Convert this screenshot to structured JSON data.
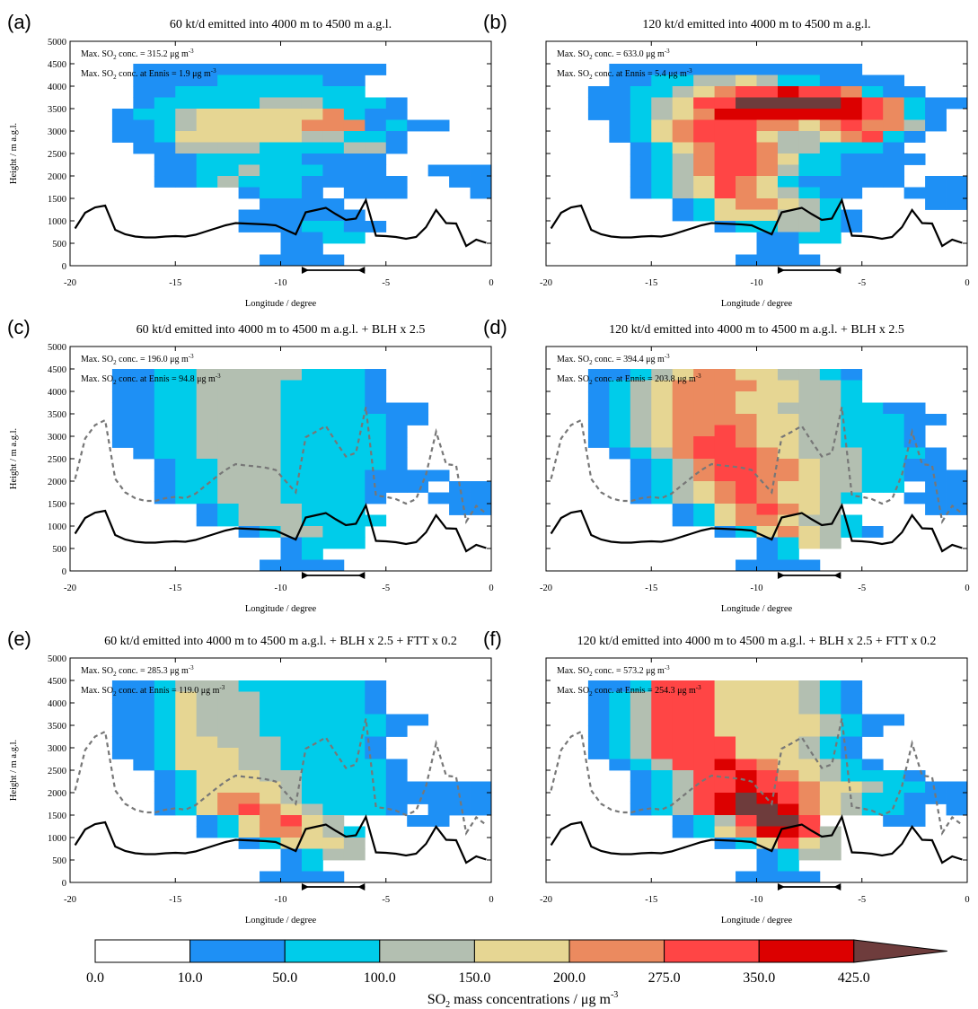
{
  "colorbar": {
    "labels": [
      "0.0",
      "10.0",
      "50.0",
      "100.0",
      "150.0",
      "200.0",
      "275.0",
      "350.0",
      "425.0"
    ],
    "colors": [
      "#ffffff",
      "#1e90f5",
      "#00ccea",
      "#b3bfb1",
      "#e6d693",
      "#eb8a5f",
      "#ff4545",
      "#dc0000",
      "#6e3c3c"
    ],
    "title_main": "SO",
    "title_sub": "2",
    "title_rest": " mass concentrations / μg m",
    "title_sup": "-3"
  },
  "axes": {
    "xlabel": "Longitude / degree",
    "ylabel": "Height / m a.g.l."
  },
  "chart_data": [
    {
      "type": "heatmap",
      "panel": "(a)",
      "title": "60 kt/d emitted into 4000 m to 4500 m a.g.l.",
      "ann": [
        {
          "pre": "Max. SO",
          "sub": "2",
          "post": " conc. = 315.2 μg m",
          "sup": "-3"
        },
        {
          "pre": "Max. SO",
          "sub": "2",
          "post": " conc. at Ennis = 1.9 μg m",
          "sup": "-3"
        }
      ],
      "xlim": [
        -20,
        0
      ],
      "ylim": [
        0,
        5000
      ],
      "x_ticks": [
        "-20",
        "-15",
        "-10",
        "-5",
        "0"
      ],
      "y_ticks": [
        "0",
        "500",
        "1000",
        "1500",
        "2000",
        "2500",
        "3000",
        "3500",
        "4000",
        "4500",
        "5000"
      ],
      "grid_x_edges": [
        -16.5,
        -15,
        -13.5,
        -12,
        -10.5,
        -9,
        -7.5,
        -6,
        -4.5,
        -3,
        -1.5
      ],
      "grid_y_step": 250,
      "cells": [
        "....................",
        "....................",
        "...111111111111.....",
        "...11112222211......",
        "...11222222222......",
        "...1222223332221....",
        "..12234444445211....",
        "..1123444445551211..",
        "..11244444433221....",
        "...1133332222331....",
        "....11222221111.....",
        "....11223222111..111",
        "....112322211111..11",
        "........1221.111...1",
        ".........1111.......",
        "........111111......",
        "........1112211.....",
        "..........1122......",
        "..........11.......",
        ".........1111......."
      ],
      "blh_solid": [
        830,
        1180,
        1300,
        1340,
        800,
        700,
        650,
        630,
        630,
        650,
        660,
        650,
        690,
        760,
        830,
        900,
        950,
        940,
        930,
        920,
        900,
        800,
        700,
        1190,
        1240,
        1290,
        1150,
        1020,
        1050,
        1460,
        670,
        660,
        640,
        600,
        640,
        860,
        1240,
        950,
        940,
        440,
        580,
        510
      ],
      "blh_dashed": [],
      "ennis_bar": [
        -9,
        -6
      ]
    },
    {
      "type": "heatmap",
      "panel": "(b)",
      "title": "120 kt/d emitted into 4000 m to 4500 m a.g.l.",
      "ann": [
        {
          "pre": "Max. SO",
          "sub": "2",
          "post": " conc. = 633.0 μg m",
          "sup": "-3"
        },
        {
          "pre": "Max. SO",
          "sub": "2",
          "post": " conc. at Ennis = 5.4 μg m",
          "sup": "-3"
        }
      ],
      "xlim": [
        -20,
        0
      ],
      "ylim": [
        0,
        5000
      ],
      "x_ticks": [
        "-20",
        "-15",
        "-10",
        "-5",
        "0"
      ],
      "y_ticks": [
        "0",
        "500",
        "1000",
        "1500",
        "2000",
        "2500",
        "3000",
        "3500",
        "4000",
        "4500",
        "5000"
      ],
      "cells": [
        "....................",
        "....................",
        "...111111111111.....",
        "...11223343221111...",
        "..1122345667665211..",
        "..112346688888765211",
        "..11234577777776521.",
        "...1245666554565531.",
        "...124566643345621..",
        "....1245665332221...",
        "....12356654221111..",
        "....1235665322111...",
        "....1234654211111.11",
        "....12346543211..111",
        "......12455432....11",
        "......124443321.....",
        "........1223321.....",
        "..........1122......",
        "..........11.......",
        ".........1111......."
      ],
      "blh_solid": [
        830,
        1180,
        1300,
        1340,
        800,
        700,
        650,
        630,
        630,
        650,
        660,
        650,
        690,
        760,
        830,
        900,
        950,
        940,
        930,
        920,
        900,
        800,
        700,
        1190,
        1240,
        1290,
        1150,
        1020,
        1050,
        1460,
        670,
        660,
        640,
        600,
        640,
        860,
        1240,
        950,
        940,
        440,
        580,
        510
      ],
      "blh_dashed": [],
      "ennis_bar": [
        -9,
        -6
      ]
    },
    {
      "type": "heatmap",
      "panel": "(c)",
      "title": "60 kt/d emitted into 4000 m to 4500 m a.g.l. + BLH x 2.5",
      "ann": [
        {
          "pre": "Max. SO",
          "sub": "2",
          "post": " conc. = 196.0 μg m",
          "sup": "-3"
        },
        {
          "pre": "Max. SO",
          "sub": "2",
          "post": " conc. at Ennis = 94.8 μg m",
          "sup": "-3"
        }
      ],
      "xlim": [
        -20,
        0
      ],
      "ylim": [
        0,
        5000
      ],
      "x_ticks": [
        "-20",
        "-15",
        "-10",
        "-5",
        "0"
      ],
      "y_ticks": [
        "0",
        "500",
        "1000",
        "1500",
        "2000",
        "2500",
        "3000",
        "3500",
        "4000",
        "4500",
        "5000"
      ],
      "cells": [
        "....................",
        "....................",
        "..1122333332221.....",
        "..1122333322221.....",
        "..1122333322221.....",
        "..112233332222111...",
        "..112233332222211...",
        "..11223333222221....",
        "..11223333222221....",
        "...1223333222221....",
        "....122333222221....",
        "....12233322221111..",
        "....1223332222111.11",
        "....12233322221..111",
        "......12333222....11",
        "......123332222.....",
        "........123322......",
        "..........1222......",
        "..........12.......",
        ".........1111......."
      ],
      "blh_solid": [
        830,
        1180,
        1300,
        1340,
        800,
        700,
        650,
        630,
        630,
        650,
        660,
        650,
        690,
        760,
        830,
        900,
        950,
        940,
        930,
        920,
        900,
        800,
        700,
        1190,
        1240,
        1290,
        1150,
        1020,
        1050,
        1460,
        670,
        660,
        640,
        600,
        640,
        860,
        1240,
        950,
        940,
        440,
        580,
        510
      ],
      "blh_dashed": [
        2050,
        2950,
        3250,
        3360,
        2050,
        1750,
        1620,
        1560,
        1560,
        1620,
        1650,
        1620,
        1720,
        1900,
        2080,
        2250,
        2380,
        2350,
        2330,
        2300,
        2250,
        2000,
        1750,
        2980,
        3100,
        3230,
        2880,
        2550,
        2630,
        3650,
        1680,
        1650,
        1600,
        1500,
        1600,
        2150,
        3100,
        2380,
        2350,
        1100,
        1450,
        1280
      ],
      "ennis_bar": [
        -9,
        -6
      ]
    },
    {
      "type": "heatmap",
      "panel": "(d)",
      "title": "120 kt/d emitted into 4000 m to 4500 m a.g.l. + BLH x 2.5",
      "ann": [
        {
          "pre": "Max. SO",
          "sub": "2",
          "post": " conc. = 394.4 μg m",
          "sup": "-3"
        },
        {
          "pre": "Max. SO",
          "sub": "2",
          "post": " conc. at Ennis = 203.8 μg m",
          "sup": "-3"
        }
      ],
      "xlim": [
        -20,
        0
      ],
      "ylim": [
        0,
        5000
      ],
      "x_ticks": [
        "-20",
        "-15",
        "-10",
        "-5",
        "0"
      ],
      "y_ticks": [
        "0",
        "500",
        "1000",
        "1500",
        "2000",
        "2500",
        "3000",
        "3500",
        "4000",
        "4500",
        "5000"
      ],
      "cells": [
        "....................",
        "....................",
        "..1123455443321.....",
        "..1234555544332.....",
        "..1234555444332.....",
        "..1234555443332211..",
        "..12345555443322211.",
        "..1234556544332221..",
        "..1234566544332221..",
        "...1235666543332221.",
        "....123566554332211.",
        "....12356655433221111",
        "....1234565443322.111",
        "....12345654432..111",
        "......12456543....11",
        "......124554332.....",
        "........12454321....",
        "..........1243......",
        "..........12.......",
        ".........1111......."
      ],
      "blh_solid": [
        830,
        1180,
        1300,
        1340,
        800,
        700,
        650,
        630,
        630,
        650,
        660,
        650,
        690,
        760,
        830,
        900,
        950,
        940,
        930,
        920,
        900,
        800,
        700,
        1190,
        1240,
        1290,
        1150,
        1020,
        1050,
        1460,
        670,
        660,
        640,
        600,
        640,
        860,
        1240,
        950,
        940,
        440,
        580,
        510
      ],
      "blh_dashed": [
        2050,
        2950,
        3250,
        3360,
        2050,
        1750,
        1620,
        1560,
        1560,
        1620,
        1650,
        1620,
        1720,
        1900,
        2080,
        2250,
        2380,
        2350,
        2330,
        2300,
        2250,
        2000,
        1750,
        2980,
        3100,
        3230,
        2880,
        2550,
        2630,
        3650,
        1680,
        1650,
        1600,
        1500,
        1600,
        2150,
        3100,
        2380,
        2350,
        1100,
        1450,
        1280
      ],
      "ennis_bar": [
        -9,
        -6
      ]
    },
    {
      "type": "heatmap",
      "panel": "(e)",
      "title": "60 kt/d emitted into 4000 m to 4500 m a.g.l. + BLH x 2.5 + FTT x 0.2",
      "ann": [
        {
          "pre": "Max. SO",
          "sub": "2",
          "post": " conc. = 285.3 μg m",
          "sup": "-3"
        },
        {
          "pre": "Max. SO",
          "sub": "2",
          "post": " conc. at Ennis = 119.0 μg m",
          "sup": "-3"
        }
      ],
      "xlim": [
        -20,
        0
      ],
      "ylim": [
        0,
        5000
      ],
      "x_ticks": [
        "-20",
        "-15",
        "-10",
        "-5",
        "0"
      ],
      "y_ticks": [
        "0",
        "500",
        "1000",
        "1500",
        "2000",
        "2500",
        "3000",
        "3500",
        "4000",
        "4500",
        "5000"
      ],
      "cells": [
        "....................",
        "....................",
        "..1123332222221.....",
        "..1124333222221.....",
        "..1124333222221.....",
        "..112433322222211...",
        "..11243332222221....",
        "..1124433322221.....",
        "..1124443322221.....",
        "...1244433222221....",
        "....124443322221....",
        "....1244443222211111",
        "....1245543222211111",
        "....124565432221.111",
        "......1245643...11..",
        "......12455432......",
        "........124443......",
        "..........1233......",
        "..........12.......",
        ".........1111......."
      ],
      "blh_solid": [
        830,
        1180,
        1300,
        1340,
        800,
        700,
        650,
        630,
        630,
        650,
        660,
        650,
        690,
        760,
        830,
        900,
        950,
        940,
        930,
        920,
        900,
        800,
        700,
        1190,
        1240,
        1290,
        1150,
        1020,
        1050,
        1460,
        670,
        660,
        640,
        600,
        640,
        860,
        1240,
        950,
        940,
        440,
        580,
        510
      ],
      "blh_dashed": [
        2050,
        2950,
        3250,
        3360,
        2050,
        1750,
        1620,
        1560,
        1560,
        1620,
        1650,
        1620,
        1720,
        1900,
        2080,
        2250,
        2380,
        2350,
        2330,
        2300,
        2250,
        2000,
        1750,
        2980,
        3100,
        3230,
        2880,
        2550,
        2630,
        3650,
        1680,
        1650,
        1600,
        1500,
        1600,
        2150,
        3100,
        2380,
        2350,
        1100,
        1450,
        1280
      ],
      "ennis_bar": [
        -9,
        -6
      ]
    },
    {
      "type": "heatmap",
      "panel": "(f)",
      "title": "120 kt/d emitted into 4000 m to 4500 m a.g.l. + BLH x 2.5 + FTT x 0.2",
      "ann": [
        {
          "pre": "Max. SO",
          "sub": "2",
          "post": " conc. = 573.2 μg m",
          "sup": "-3"
        },
        {
          "pre": "Max. SO",
          "sub": "2",
          "post": " conc. at Ennis = 254.3 μg m",
          "sup": "-3"
        }
      ],
      "xlim": [
        -20,
        0
      ],
      "ylim": [
        0,
        5000
      ],
      "x_ticks": [
        "-20",
        "-15",
        "-10",
        "-5",
        "0"
      ],
      "y_ticks": [
        "0",
        "500",
        "1000",
        "1500",
        "2000",
        "2500",
        "3000",
        "3500",
        "4000",
        "4500",
        "5000"
      ],
      "cells": [
        "....................",
        "....................",
        "..1126664444321.....",
        "..1236664444321.....",
        "..1236664444321.....",
        "..123666444443211...",
        "..12366644444321....",
        "..1236666444321.....",
        "..1236666444321.....",
        "...1236676544321....",
        "....12366765432221..",
        "....123667665443221111",
        "....1236787654322111",
        "....12367887543221.111",
        "......1236886...11..",
        "......12457763......",
        "........124643......",
        "..........1233......",
        "..........12.......",
        ".........1111......."
      ],
      "blh_solid": [
        830,
        1180,
        1300,
        1340,
        800,
        700,
        650,
        630,
        630,
        650,
        660,
        650,
        690,
        760,
        830,
        900,
        950,
        940,
        930,
        920,
        900,
        800,
        700,
        1190,
        1240,
        1290,
        1150,
        1020,
        1050,
        1460,
        670,
        660,
        640,
        600,
        640,
        860,
        1240,
        950,
        940,
        440,
        580,
        510
      ],
      "blh_dashed": [
        2050,
        2950,
        3250,
        3360,
        2050,
        1750,
        1620,
        1560,
        1560,
        1620,
        1650,
        1620,
        1720,
        1900,
        2080,
        2250,
        2380,
        2350,
        2330,
        2300,
        2250,
        2000,
        1750,
        2980,
        3100,
        3230,
        2880,
        2550,
        2630,
        3650,
        1680,
        1650,
        1600,
        1500,
        1600,
        2150,
        3100,
        2380,
        2350,
        1100,
        1450,
        1280
      ],
      "ennis_bar": [
        -9,
        -6
      ]
    }
  ]
}
